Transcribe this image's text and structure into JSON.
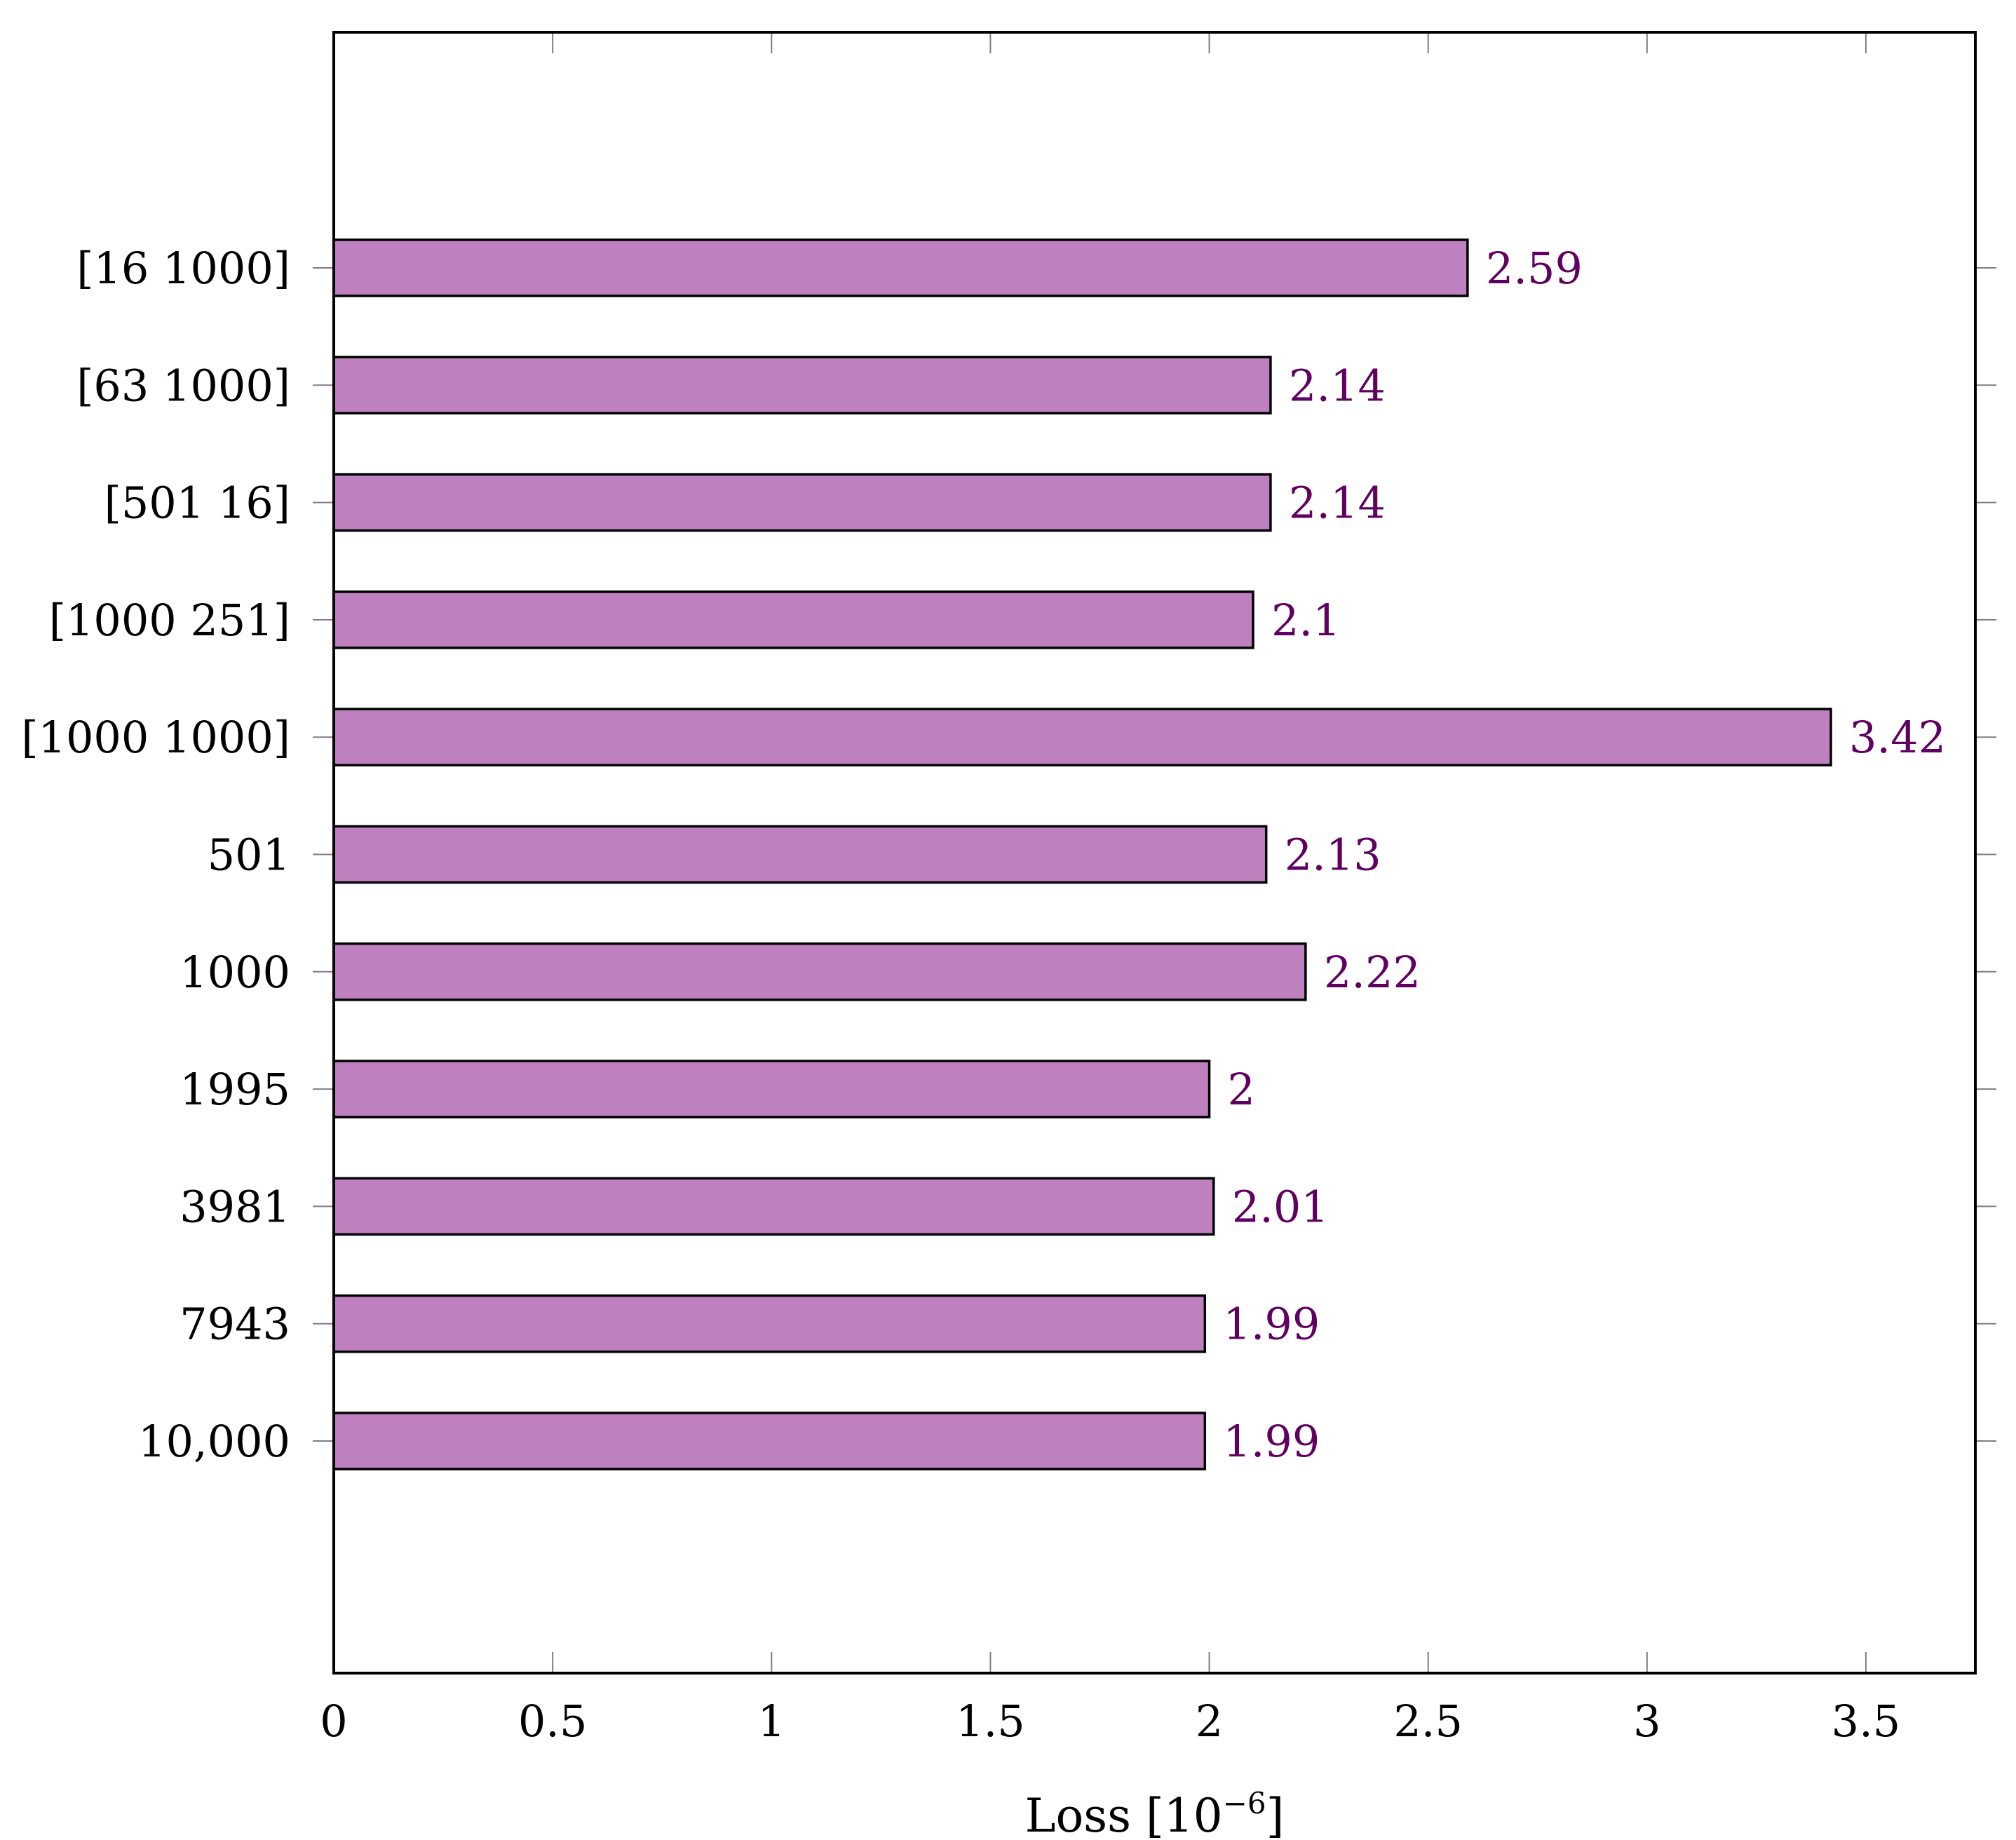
{
  "chart_data": {
    "type": "bar",
    "orientation": "horizontal",
    "categories": [
      "[16 1000]",
      "[63 1000]",
      "[501 16]",
      "[1000 251]",
      "[1000 1000]",
      "501",
      "1000",
      "1995",
      "3981",
      "7943",
      "10,000"
    ],
    "values": [
      2.59,
      2.14,
      2.14,
      2.1,
      3.42,
      2.13,
      2.22,
      2,
      2.01,
      1.99,
      1.99
    ],
    "value_labels": [
      "2.59",
      "2.14",
      "2.14",
      "2.1",
      "3.42",
      "2.13",
      "2.22",
      "2",
      "2.01",
      "1.99",
      "1.99"
    ],
    "xlabel_base": "Loss [10",
    "xlabel_exponent": "−6",
    "xlabel_close": "]",
    "xlim": [
      0,
      3.75
    ],
    "xticks": [
      0,
      0.5,
      1,
      1.5,
      2,
      2.5,
      3,
      3.5
    ],
    "xtick_labels": [
      "0",
      "0.5",
      "1",
      "1.5",
      "2",
      "2.5",
      "3",
      "3.5"
    ],
    "grid": false,
    "legend": "none",
    "colors": {
      "bar_fill": "#bf80bf",
      "bar_stroke": "#000000",
      "value_label": "#600060",
      "axis": "#000000",
      "tick": "#7f7f7f"
    }
  }
}
